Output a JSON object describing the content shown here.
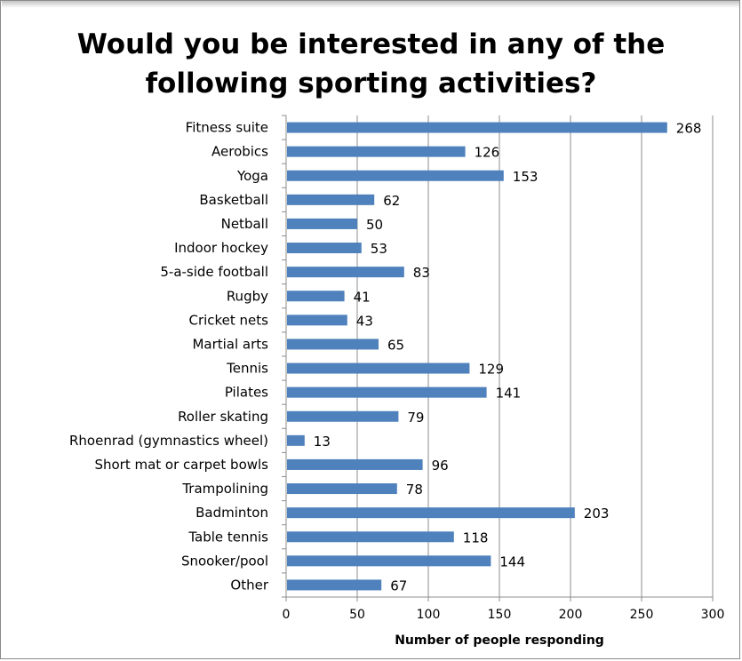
{
  "chart_data": {
    "type": "bar",
    "orientation": "horizontal",
    "title_lines": [
      "Would you be interested in any of the",
      "following sporting activities?"
    ],
    "xlabel": "Number of people responding",
    "ylabel": "",
    "xlim": [
      0,
      300
    ],
    "xticks": [
      0,
      50,
      100,
      150,
      200,
      250,
      300
    ],
    "grid": true,
    "bar_color": "#4f81bd",
    "categories": [
      "Fitness suite",
      "Aerobics",
      "Yoga",
      "Basketball",
      "Netball",
      "Indoor hockey",
      "5-a-side football",
      "Rugby",
      "Cricket nets",
      "Martial arts",
      "Tennis",
      "Pilates",
      "Roller skating",
      "Rhoenrad (gymnastics wheel)",
      "Short mat or carpet bowls",
      "Trampolining",
      "Badminton",
      "Table tennis",
      "Snooker/pool",
      "Other"
    ],
    "values": [
      268,
      126,
      153,
      62,
      50,
      53,
      83,
      41,
      43,
      65,
      129,
      141,
      79,
      13,
      96,
      78,
      203,
      118,
      144,
      67
    ]
  }
}
